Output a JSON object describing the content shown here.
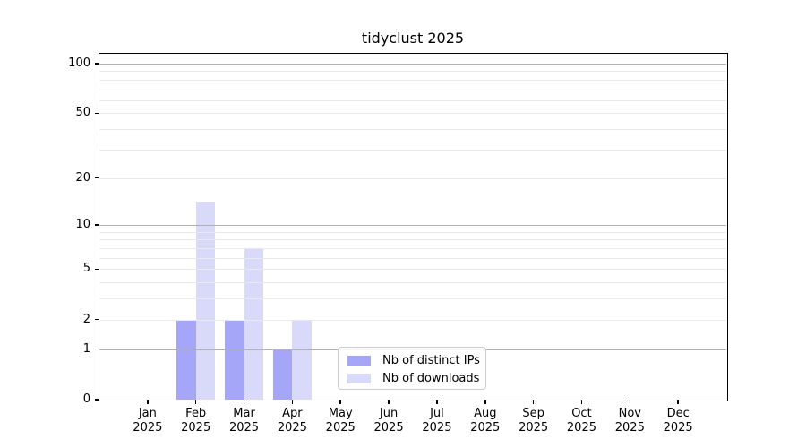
{
  "chart_data": {
    "type": "bar",
    "title": "tidyclust 2025",
    "year_label": "2025",
    "categories": [
      "Jan",
      "Feb",
      "Mar",
      "Apr",
      "May",
      "Jun",
      "Jul",
      "Aug",
      "Sep",
      "Oct",
      "Nov",
      "Dec"
    ],
    "series": [
      {
        "key": "distinct-ips",
        "name": "Nb of distinct IPs",
        "color": "#a6a6f8",
        "values": [
          0,
          2,
          2,
          1,
          0,
          0,
          0,
          0,
          0,
          0,
          0,
          0
        ]
      },
      {
        "key": "downloads",
        "name": "Nb of downloads",
        "color": "#d9daf9",
        "values": [
          0,
          14,
          7,
          2,
          0,
          0,
          0,
          0,
          0,
          0,
          0,
          0
        ]
      }
    ],
    "yscale": "log1p",
    "ylim": [
      0,
      114.6
    ],
    "yticks": [
      0,
      1,
      2,
      5,
      10,
      20,
      50,
      100
    ],
    "grid": {
      "major": [
        1,
        10,
        100
      ],
      "minor": [
        2,
        3,
        4,
        5,
        6,
        7,
        8,
        9,
        20,
        30,
        40,
        50,
        60,
        70,
        80,
        90
      ]
    },
    "legend_position": "lower center inside plot",
    "colors": {
      "background": "#ffffff",
      "axis": "#000000",
      "grid_major": "#b0b0b0",
      "grid_minor": "#e9e9e9",
      "legend_border": "#cccccc"
    }
  }
}
